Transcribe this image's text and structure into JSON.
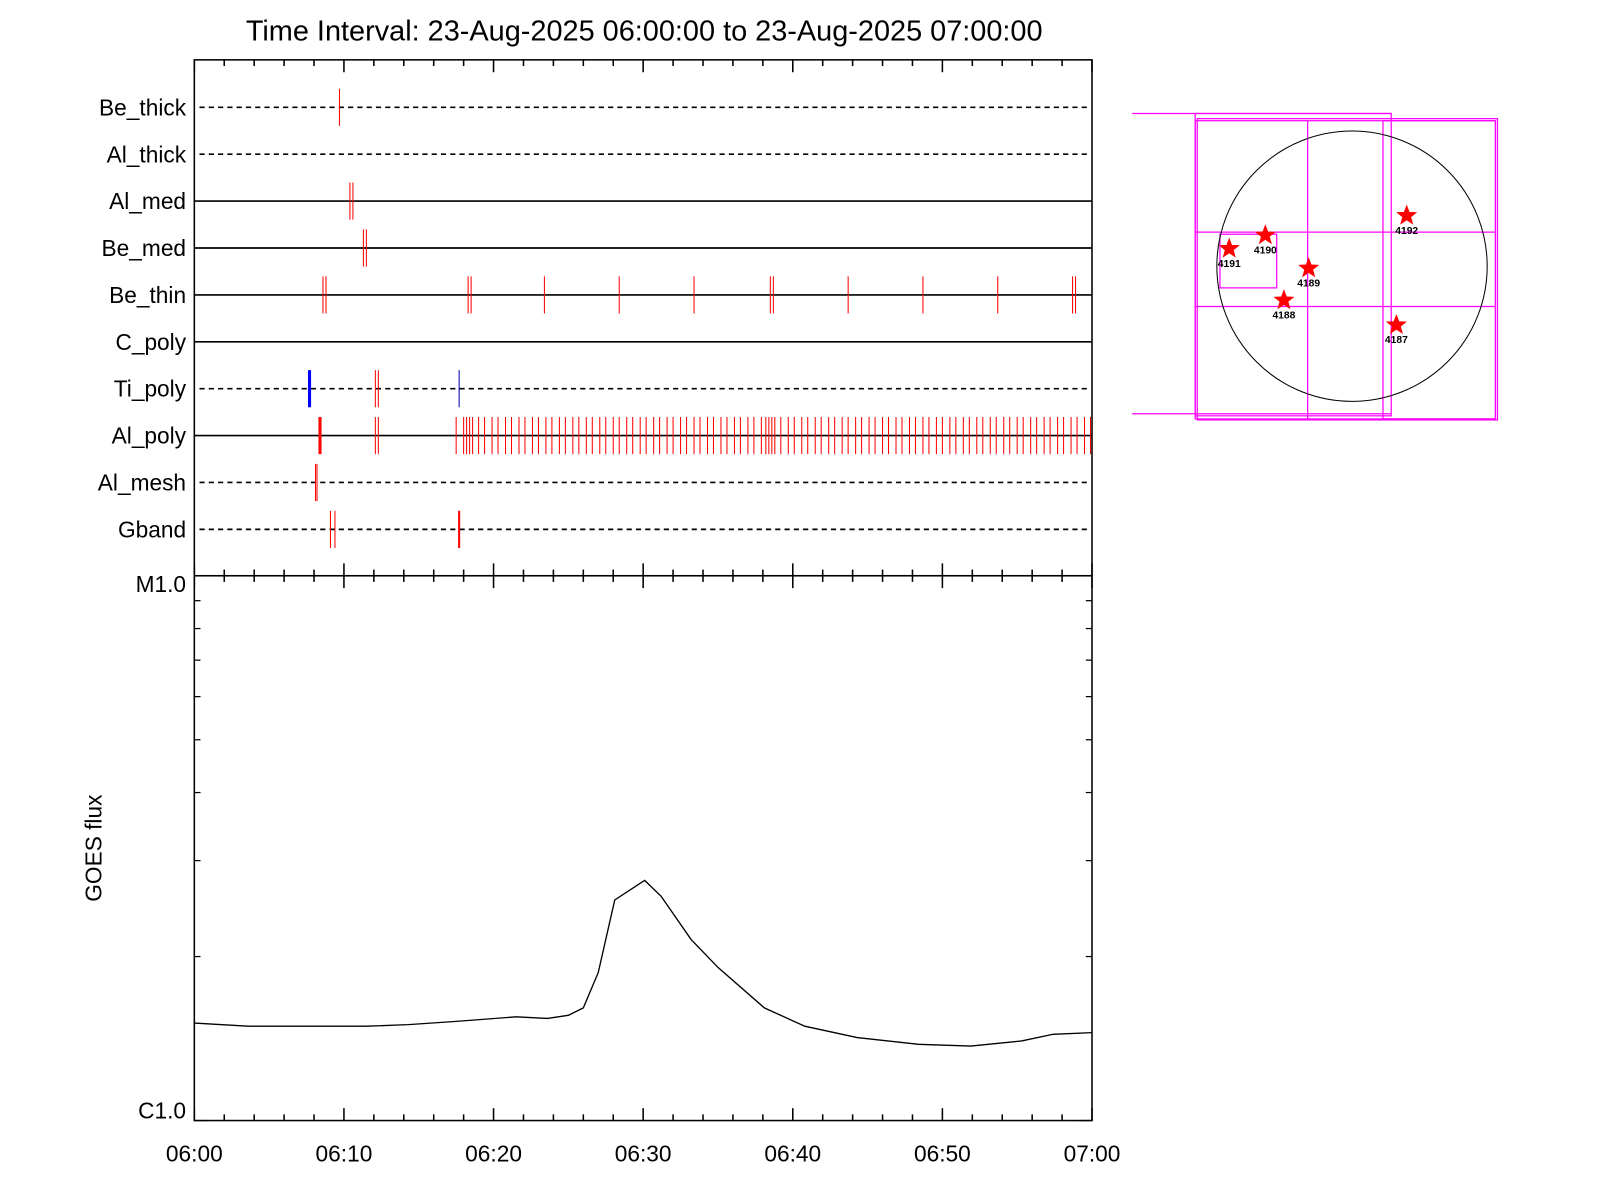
{
  "chart_data": [
    {
      "type": "timeline",
      "title": "Time Interval: 23-Aug-2025 06:00:00 to 23-Aug-2025 07:00:00",
      "xlim": [
        0,
        60
      ],
      "xticks": [
        0,
        10,
        20,
        30,
        40,
        50,
        60
      ],
      "xminorticks": [
        2,
        4,
        6,
        8,
        12,
        14,
        16,
        18,
        22,
        24,
        26,
        28,
        32,
        34,
        36,
        38,
        42,
        44,
        46,
        48,
        52,
        54,
        56,
        58
      ],
      "rows": [
        {
          "name": "Be_thick",
          "line": "dashed",
          "events": [
            {
              "color": "#ff0000",
              "width": 1,
              "times": [
                9.7
              ]
            }
          ]
        },
        {
          "name": "Al_thick",
          "line": "dashed",
          "events": []
        },
        {
          "name": "Al_med",
          "line": "solid",
          "events": [
            {
              "color": "#ff0000",
              "width": 1,
              "times": [
                10.4,
                10.6
              ]
            }
          ]
        },
        {
          "name": "Be_med",
          "line": "solid",
          "events": [
            {
              "color": "#ff0000",
              "width": 1,
              "times": [
                11.3,
                11.5
              ]
            }
          ]
        },
        {
          "name": "Be_thin",
          "line": "solid",
          "events": [
            {
              "color": "#ff0000",
              "width": 1,
              "times": [
                8.6,
                8.8,
                18.3,
                18.5,
                23.4,
                28.4,
                33.4,
                38.5,
                38.7,
                43.7,
                48.7,
                53.7,
                58.7,
                58.9
              ]
            }
          ]
        },
        {
          "name": "C_poly",
          "line": "solid",
          "events": []
        },
        {
          "name": "Ti_poly",
          "line": "dashed",
          "events": [
            {
              "color": "#0000ff",
              "width": 3,
              "times": [
                7.7
              ]
            },
            {
              "color": "#ff0000",
              "width": 1,
              "times": [
                12.1,
                12.3
              ]
            },
            {
              "color": "#0000aa",
              "width": 1,
              "times": [
                17.7
              ]
            }
          ]
        },
        {
          "name": "Al_poly",
          "line": "solid",
          "events": [
            {
              "color": "#ff0000",
              "width": 3,
              "times": [
                8.4
              ]
            },
            {
              "color": "#ff0000",
              "width": 1,
              "times": [
                12.1,
                12.3,
                17.5,
                18.0,
                18.2,
                18.4,
                18.6,
                19.0,
                19.4,
                19.9,
                20.3,
                20.8,
                21.2,
                21.7,
                22.1,
                22.6,
                23.0,
                23.5,
                23.9,
                24.4,
                24.8,
                25.3,
                25.7,
                26.2,
                26.6,
                27.1,
                27.5,
                28.0,
                28.4,
                28.9,
                29.3,
                29.8,
                30.2,
                30.7,
                31.1,
                31.6,
                32.0,
                32.5,
                32.9,
                33.4,
                33.8,
                34.3,
                34.7,
                35.2,
                35.6,
                36.1,
                36.5,
                37.0,
                37.4,
                37.9,
                38.2,
                38.4,
                38.6,
                38.8,
                39.2,
                39.7,
                40.1,
                40.6,
                41.0,
                41.5,
                41.9,
                42.4,
                42.8,
                43.3,
                43.7,
                44.2,
                44.6,
                45.1,
                45.5,
                46.0,
                46.4,
                46.9,
                47.3,
                47.8,
                48.2,
                48.7,
                49.1,
                49.6,
                50.0,
                50.5,
                50.9,
                51.4,
                51.8,
                52.3,
                52.7,
                53.2,
                53.6,
                54.1,
                54.5,
                55.0,
                55.4,
                55.9,
                56.3,
                56.8,
                57.2,
                57.7,
                58.1,
                58.6,
                59.0,
                59.5,
                59.9
              ]
            }
          ]
        },
        {
          "name": "Al_mesh",
          "line": "dashed",
          "events": [
            {
              "color": "#ff0000",
              "width": 1,
              "times": [
                8.1,
                8.2
              ]
            }
          ]
        },
        {
          "name": "Gband",
          "line": "dashed",
          "events": [
            {
              "color": "#ff0000",
              "width": 1,
              "times": [
                9.1,
                9.4
              ]
            },
            {
              "color": "#ff0000",
              "width": 2,
              "times": [
                17.7
              ]
            }
          ]
        }
      ]
    },
    {
      "type": "line",
      "ylabel": "GOES flux",
      "log": true,
      "color": "#000000",
      "xlim": [
        0,
        60
      ],
      "xticks": [
        {
          "value": 0,
          "label": "06:00"
        },
        {
          "value": 10,
          "label": "06:10"
        },
        {
          "value": 20,
          "label": "06:20"
        },
        {
          "value": 30,
          "label": "06:30"
        },
        {
          "value": 40,
          "label": "06:40"
        },
        {
          "value": 50,
          "label": "06:50"
        },
        {
          "value": 60,
          "label": "07:00"
        }
      ],
      "xminorticks": [
        2,
        4,
        6,
        8,
        12,
        14,
        16,
        18,
        22,
        24,
        26,
        28,
        32,
        34,
        36,
        38,
        42,
        44,
        46,
        48,
        52,
        54,
        56,
        58
      ],
      "ylim": [
        1e-06,
        1e-05
      ],
      "yticks": [
        {
          "value": 1e-06,
          "label": "C1.0"
        },
        {
          "value": 1e-05,
          "label": "M1.0"
        }
      ],
      "yminorticks": [
        2e-06,
        3e-06,
        4e-06,
        5e-06,
        6e-06,
        7e-06,
        8e-06,
        9e-06
      ],
      "x": [
        0,
        3.6,
        11.5,
        14.3,
        17.4,
        21.5,
        23.6,
        25.0,
        26.0,
        27.0,
        28.1,
        30.1,
        31.2,
        33.2,
        35.0,
        38.1,
        40.8,
        44.3,
        48.4,
        51.9,
        55.3,
        57.4,
        60
      ],
      "values": [
        1.51e-06,
        1.49e-06,
        1.49e-06,
        1.5e-06,
        1.52e-06,
        1.55e-06,
        1.54e-06,
        1.56e-06,
        1.61e-06,
        1.87e-06,
        2.54e-06,
        2.76e-06,
        2.58e-06,
        2.15e-06,
        1.91e-06,
        1.61e-06,
        1.49e-06,
        1.42e-06,
        1.38e-06,
        1.37e-06,
        1.4e-06,
        1.44e-06,
        1.45e-06
      ]
    }
  ],
  "solar_map": {
    "regions": [
      "4191",
      "4190",
      "4189",
      "4188",
      "4192",
      "4187"
    ]
  }
}
